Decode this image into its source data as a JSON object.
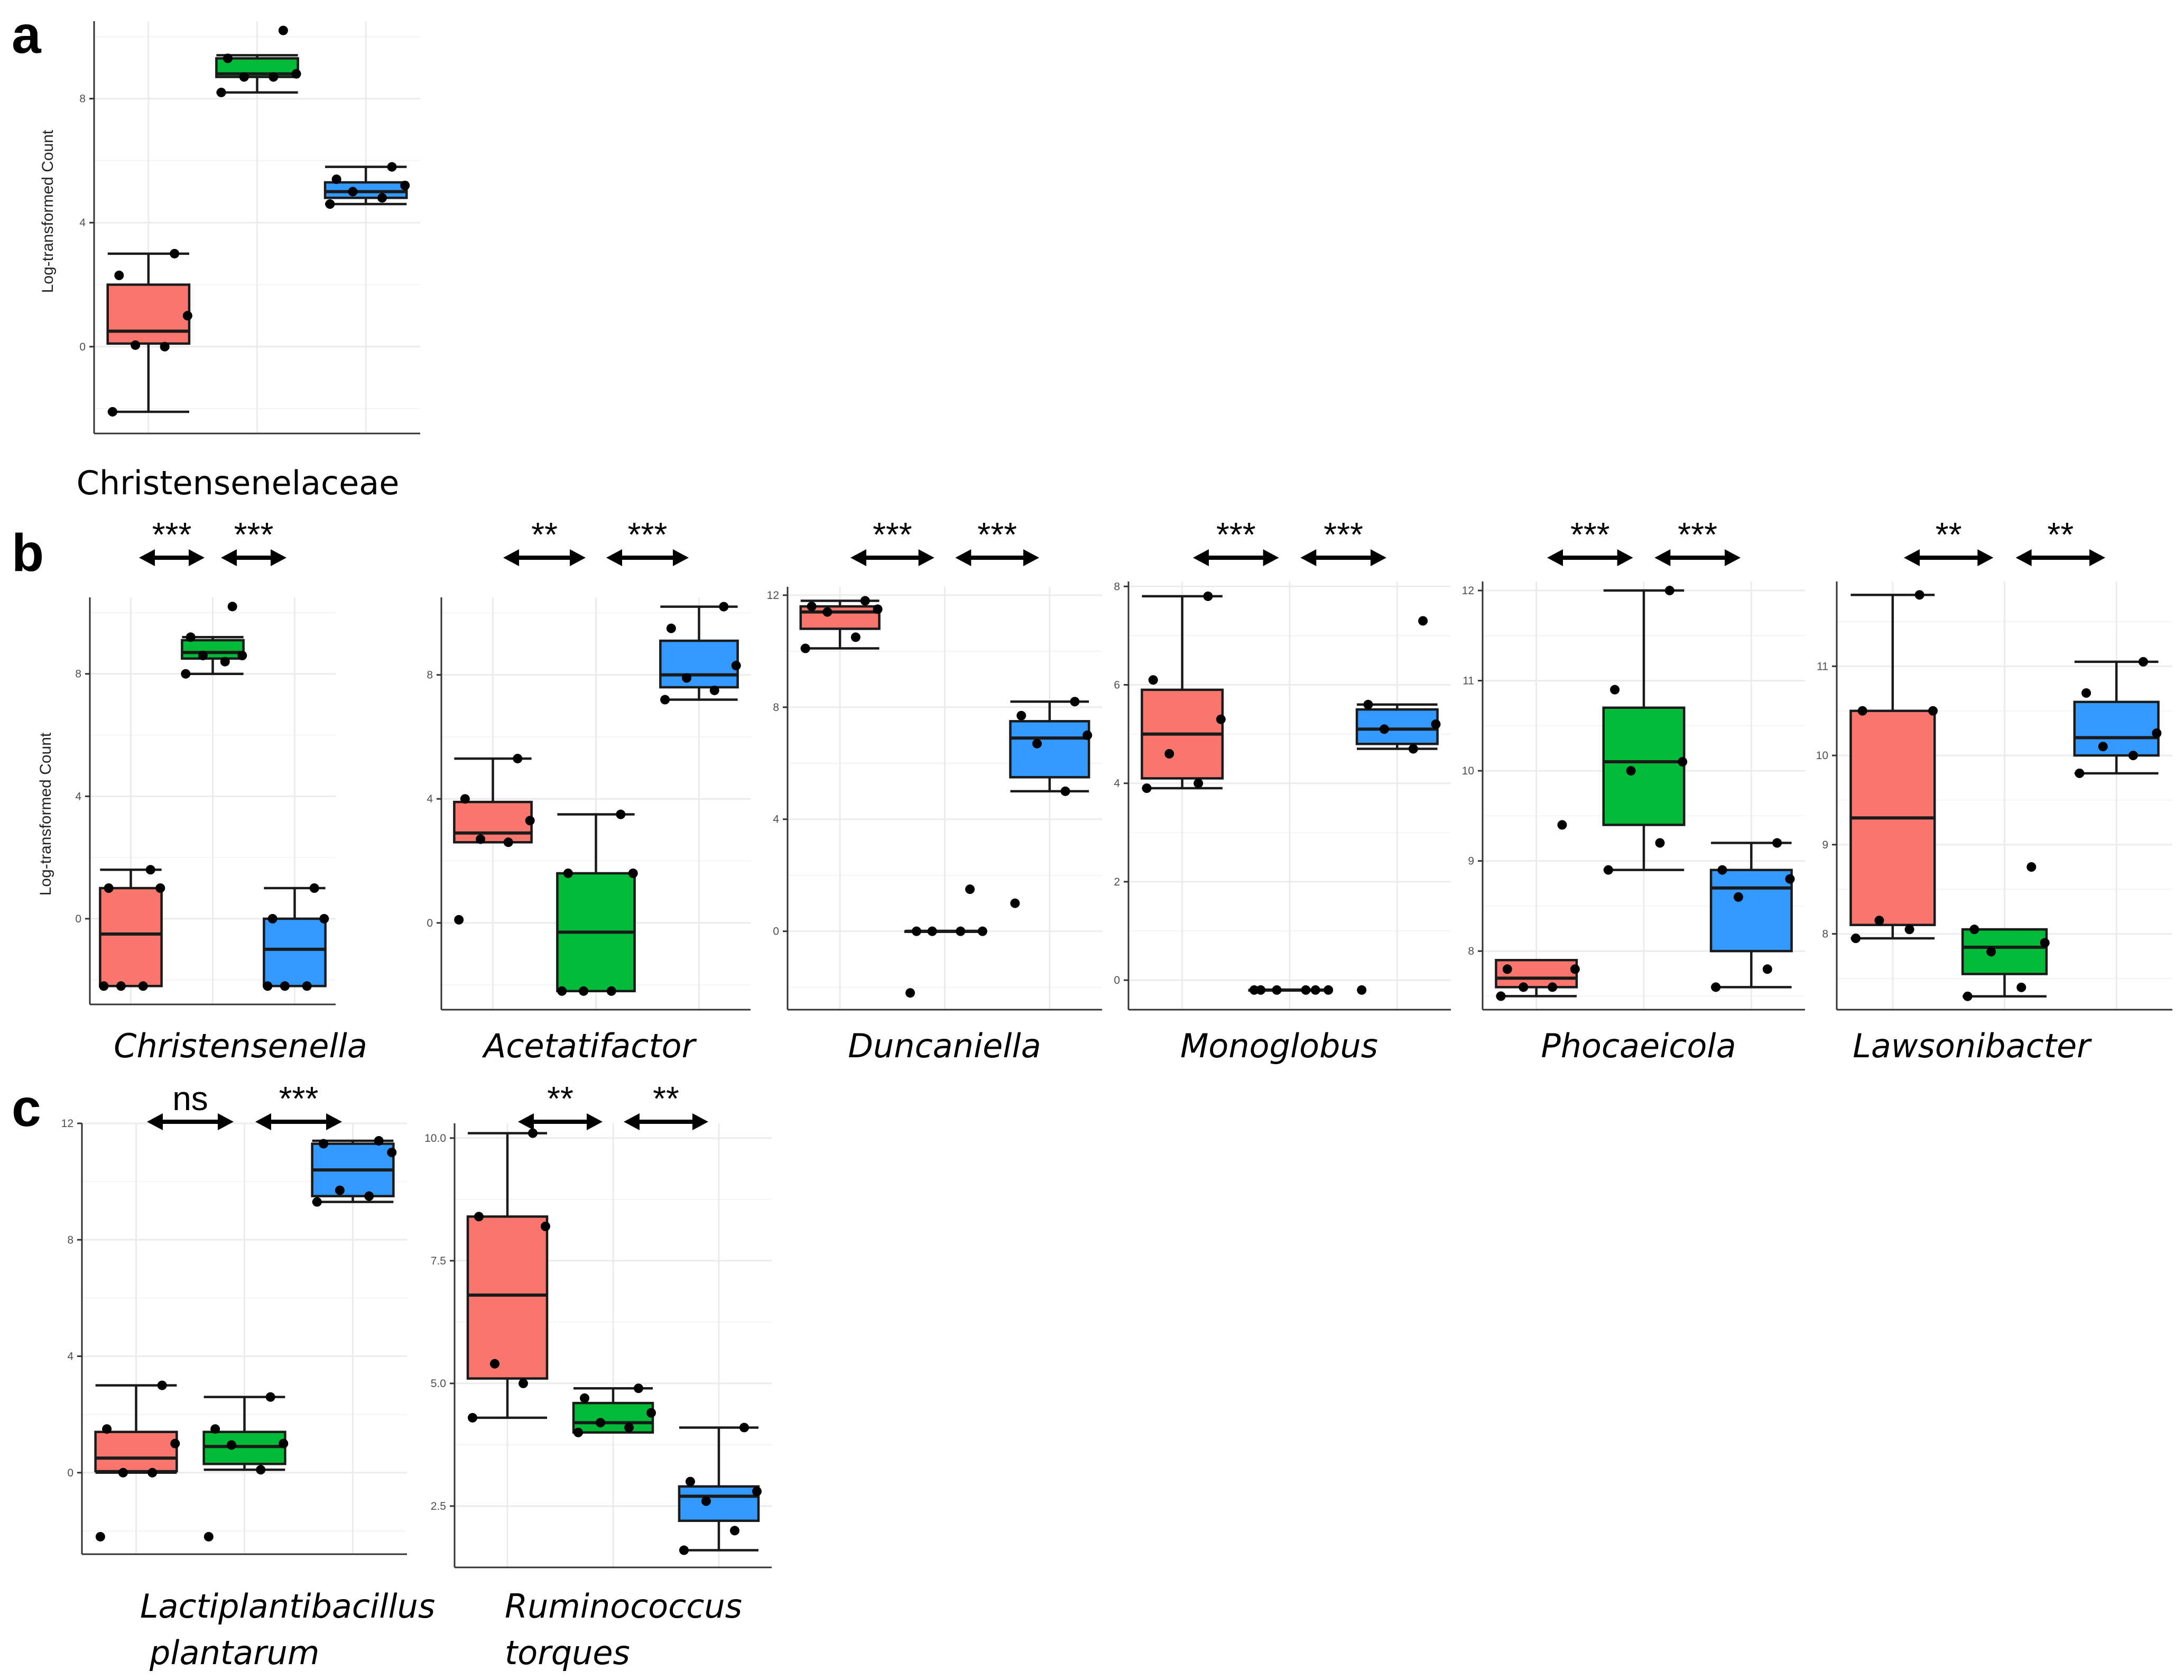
{
  "panel_letters": [
    "a",
    "b",
    "c"
  ],
  "colors": {
    "group1": "#f8766d",
    "group2": "#00ba38",
    "group3": "#3399ff"
  },
  "chart_data": [
    {
      "type": "box",
      "panel": "a",
      "label": "Christensenelaceae",
      "italic": false,
      "ylabel": "Log-transformed Count",
      "ylim": [
        -2.8,
        10.5
      ],
      "yticks": [
        0,
        4,
        8
      ],
      "comparisons": [],
      "groups": [
        {
          "q1": 0.1,
          "median": 0.5,
          "q3": 2.0,
          "whisker_low": -2.1,
          "whisker_high": 3.0,
          "points": [
            -2.1,
            0.0,
            0.05,
            1.0,
            2.3,
            3.0
          ]
        },
        {
          "q1": 8.7,
          "median": 8.8,
          "q3": 9.3,
          "whisker_low": 8.2,
          "whisker_high": 9.4,
          "points": [
            8.2,
            8.7,
            8.7,
            8.8,
            9.3,
            10.2
          ]
        },
        {
          "q1": 4.8,
          "median": 5.0,
          "q3": 5.3,
          "whisker_low": 4.6,
          "whisker_high": 5.8,
          "points": [
            4.6,
            4.8,
            5.0,
            5.2,
            5.4,
            5.8
          ]
        }
      ]
    },
    {
      "type": "box",
      "panel": "b",
      "label": "Christensenella",
      "italic": true,
      "ylabel": "Log-transformed Count",
      "ylim": [
        -2.8,
        10.5
      ],
      "yticks": [
        0,
        4,
        8
      ],
      "comparisons": [
        "***",
        "***"
      ],
      "groups": [
        {
          "q1": -2.2,
          "median": -0.5,
          "q3": 1.0,
          "whisker_low": -2.2,
          "whisker_high": 1.6,
          "points": [
            -2.2,
            -2.2,
            -2.2,
            1.0,
            1.0,
            1.6
          ]
        },
        {
          "q1": 8.5,
          "median": 8.7,
          "q3": 9.1,
          "whisker_low": 8.0,
          "whisker_high": 9.2,
          "points": [
            8.0,
            8.4,
            8.6,
            8.6,
            9.2,
            10.2
          ]
        },
        {
          "q1": -2.2,
          "median": -1.0,
          "q3": 0.0,
          "whisker_low": -2.2,
          "whisker_high": 1.0,
          "points": [
            -2.2,
            -2.2,
            -2.2,
            0.0,
            0.0,
            1.0
          ]
        }
      ]
    },
    {
      "type": "box",
      "panel": "b",
      "label": "Acetatifactor",
      "italic": true,
      "ylabel": "",
      "ylim": [
        -2.8,
        10.5
      ],
      "yticks": [
        0,
        4,
        8
      ],
      "comparisons": [
        "**",
        "***"
      ],
      "groups": [
        {
          "q1": 2.6,
          "median": 2.9,
          "q3": 3.9,
          "whisker_low": 2.6,
          "whisker_high": 5.3,
          "points": [
            0.1,
            2.6,
            2.7,
            3.3,
            4.0,
            5.3
          ]
        },
        {
          "q1": -2.2,
          "median": -0.3,
          "q3": 1.6,
          "whisker_low": -2.2,
          "whisker_high": 3.5,
          "points": [
            -2.2,
            -2.2,
            -2.2,
            1.6,
            1.6,
            3.5
          ]
        },
        {
          "q1": 7.6,
          "median": 8.0,
          "q3": 9.1,
          "whisker_low": 7.2,
          "whisker_high": 10.2,
          "points": [
            7.2,
            7.5,
            7.9,
            8.3,
            9.5,
            10.2
          ]
        }
      ]
    },
    {
      "type": "box",
      "panel": "b",
      "label": "Duncaniella",
      "italic": true,
      "ylabel": "",
      "ylim": [
        -2.8,
        12.3
      ],
      "yticks": [
        0,
        4,
        8,
        12
      ],
      "comparisons": [
        "***",
        "***"
      ],
      "groups": [
        {
          "q1": 10.8,
          "median": 11.4,
          "q3": 11.6,
          "whisker_low": 10.1,
          "whisker_high": 11.8,
          "points": [
            10.1,
            10.5,
            11.4,
            11.5,
            11.6,
            11.8
          ]
        },
        {
          "q1": 0.0,
          "median": 0.0,
          "q3": 0.0,
          "whisker_low": 0.0,
          "whisker_high": 0.0,
          "points": [
            -2.2,
            0.0,
            0.0,
            0.0,
            0.0,
            1.5
          ]
        },
        {
          "q1": 5.5,
          "median": 6.9,
          "q3": 7.5,
          "whisker_low": 5.0,
          "whisker_high": 8.2,
          "points": [
            1.0,
            5.0,
            6.7,
            7.0,
            7.7,
            8.2
          ]
        }
      ]
    },
    {
      "type": "box",
      "panel": "b",
      "label": "Monoglobus",
      "italic": true,
      "ylabel": "",
      "ylim": [
        -0.6,
        8.1
      ],
      "yticks": [
        0,
        2,
        4,
        6,
        8
      ],
      "comparisons": [
        "***",
        "***"
      ],
      "groups": [
        {
          "q1": 4.1,
          "median": 5.0,
          "q3": 5.9,
          "whisker_low": 3.9,
          "whisker_high": 7.8,
          "points": [
            3.9,
            4.0,
            4.6,
            5.3,
            6.1,
            7.8
          ]
        },
        {
          "q1": -0.2,
          "median": -0.2,
          "q3": -0.2,
          "whisker_low": -0.2,
          "whisker_high": -0.2,
          "points": [
            -0.2,
            -0.2,
            -0.2,
            -0.2,
            -0.2,
            -0.2
          ]
        },
        {
          "q1": 4.8,
          "median": 5.1,
          "q3": 5.5,
          "whisker_low": 4.7,
          "whisker_high": 5.6,
          "points": [
            -0.2,
            4.7,
            5.1,
            5.2,
            5.6,
            7.3
          ]
        }
      ]
    },
    {
      "type": "box",
      "panel": "b",
      "label": "Phocaeicola",
      "italic": true,
      "ylabel": "",
      "ylim": [
        7.35,
        12.1
      ],
      "yticks": [
        8,
        9,
        10,
        11,
        12
      ],
      "comparisons": [
        "***",
        "***"
      ],
      "groups": [
        {
          "q1": 7.6,
          "median": 7.7,
          "q3": 7.9,
          "whisker_low": 7.5,
          "whisker_high": 7.9,
          "points": [
            7.5,
            7.6,
            7.6,
            7.8,
            7.8,
            9.4
          ]
        },
        {
          "q1": 9.4,
          "median": 10.1,
          "q3": 10.7,
          "whisker_low": 8.9,
          "whisker_high": 12.0,
          "points": [
            8.9,
            9.2,
            10.0,
            10.1,
            10.9,
            12.0
          ]
        },
        {
          "q1": 8.0,
          "median": 8.7,
          "q3": 8.9,
          "whisker_low": 7.6,
          "whisker_high": 9.2,
          "points": [
            7.6,
            7.8,
            8.6,
            8.8,
            8.9,
            9.2
          ]
        }
      ]
    },
    {
      "type": "box",
      "panel": "b",
      "label": "Lawsonibacter",
      "italic": true,
      "ylabel": "",
      "ylim": [
        7.15,
        11.95
      ],
      "yticks": [
        8,
        9,
        10,
        11
      ],
      "comparisons": [
        "**",
        "**"
      ],
      "groups": [
        {
          "q1": 8.1,
          "median": 9.3,
          "q3": 10.5,
          "whisker_low": 7.95,
          "whisker_high": 11.8,
          "points": [
            7.95,
            8.05,
            8.15,
            10.5,
            10.5,
            11.8
          ]
        },
        {
          "q1": 7.55,
          "median": 7.85,
          "q3": 8.05,
          "whisker_low": 7.3,
          "whisker_high": 8.05,
          "points": [
            7.3,
            7.4,
            7.8,
            7.9,
            8.05,
            8.75
          ]
        },
        {
          "q1": 10.0,
          "median": 10.2,
          "q3": 10.6,
          "whisker_low": 9.8,
          "whisker_high": 11.05,
          "points": [
            9.8,
            10.0,
            10.1,
            10.25,
            10.7,
            11.05
          ]
        }
      ]
    },
    {
      "type": "box",
      "panel": "c",
      "label": "Lactiplantibacillus plantarum",
      "label_lines": [
        "Lactiplantibacillus",
        "plantarum"
      ],
      "italic": true,
      "ylabel": "",
      "ylim": [
        -2.8,
        12.0
      ],
      "yticks": [
        0,
        4,
        8,
        12
      ],
      "comparisons": [
        "ns",
        "***"
      ],
      "groups": [
        {
          "q1": 0.05,
          "median": 0.5,
          "q3": 1.4,
          "whisker_low": 0.0,
          "whisker_high": 3.0,
          "points": [
            -2.2,
            0.0,
            0.0,
            1.0,
            1.5,
            3.0
          ]
        },
        {
          "q1": 0.3,
          "median": 0.9,
          "q3": 1.4,
          "whisker_low": 0.1,
          "whisker_high": 2.6,
          "points": [
            -2.2,
            0.1,
            0.95,
            1.0,
            1.5,
            2.6
          ]
        },
        {
          "q1": 9.5,
          "median": 10.4,
          "q3": 11.3,
          "whisker_low": 9.3,
          "whisker_high": 11.4,
          "points": [
            9.3,
            9.5,
            9.7,
            11.0,
            11.3,
            11.4
          ]
        }
      ]
    },
    {
      "type": "box",
      "panel": "c",
      "label": "Ruminococcus torques",
      "label_lines": [
        "Ruminococcus",
        "torques"
      ],
      "italic": true,
      "ylabel": "",
      "ylim": [
        1.25,
        10.3
      ],
      "yticks": [
        2.5,
        5.0,
        7.5,
        10.0
      ],
      "ytick_labels": [
        "2.5",
        "5.0",
        "7.5",
        "10.0"
      ],
      "comparisons": [
        "**",
        "**"
      ],
      "groups": [
        {
          "q1": 5.1,
          "median": 6.8,
          "q3": 8.4,
          "whisker_low": 4.3,
          "whisker_high": 10.1,
          "points": [
            4.3,
            5.0,
            5.4,
            8.2,
            8.4,
            10.1
          ]
        },
        {
          "q1": 4.0,
          "median": 4.2,
          "q3": 4.6,
          "whisker_low": 4.0,
          "whisker_high": 4.9,
          "points": [
            4.0,
            4.1,
            4.2,
            4.4,
            4.7,
            4.9
          ]
        },
        {
          "q1": 2.2,
          "median": 2.7,
          "q3": 2.9,
          "whisker_low": 1.6,
          "whisker_high": 4.1,
          "points": [
            1.6,
            2.0,
            2.6,
            2.8,
            3.0,
            4.1
          ]
        }
      ]
    }
  ]
}
